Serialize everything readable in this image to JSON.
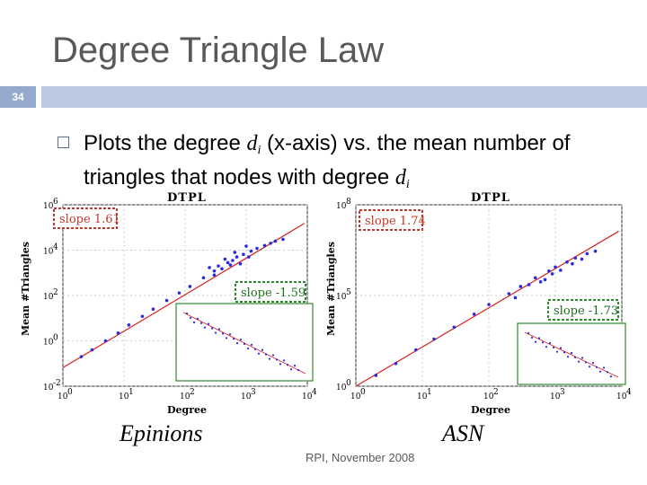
{
  "slide": {
    "title": "Degree Triangle Law",
    "number": "34",
    "bullet_part1": "Plots the degree ",
    "bullet_var": "d",
    "bullet_sub": "i",
    "bullet_part2": " (x-axis) vs. the mean number of triangles that nodes with degree ",
    "bullet_var2": "d",
    "bullet_sub2": "i",
    "footer": "RPI, November 2008",
    "left_caption": "Epinions",
    "right_caption": "ASN"
  },
  "colors": {
    "accent_bar": "#bac9e0",
    "number_box": "#94a9cc",
    "fit_line": "#d92020",
    "points": "#2a2ae0",
    "slope_box": "#c0392b",
    "inset_box": "#2e8b2e"
  },
  "chart_data": [
    {
      "type": "scatter",
      "title": "DTPL",
      "xlabel": "Degree",
      "ylabel": "Mean #Triangles",
      "x_scale": "log",
      "y_scale": "log",
      "xlim": [
        1,
        10000
      ],
      "ylim": [
        0.01,
        1000000
      ],
      "x_ticks": [
        "10",
        "10",
        "10",
        "10",
        "10"
      ],
      "x_tick_exp": [
        "0",
        "1",
        "2",
        "3",
        "4"
      ],
      "y_ticks": [
        "10",
        "10",
        "10",
        "10",
        "10"
      ],
      "y_tick_exp": [
        "-2",
        "0",
        "2",
        "4",
        "6"
      ],
      "fit_slope": 1.61,
      "slope_label": "slope 1.61",
      "inset_slope_label": "slope -1.59",
      "series": [
        {
          "points": [
            [
              2,
              0.2
            ],
            [
              3,
              0.4
            ],
            [
              5,
              1.0
            ],
            [
              8,
              2.2
            ],
            [
              12,
              5
            ],
            [
              20,
              12
            ],
            [
              30,
              25
            ],
            [
              50,
              60
            ],
            [
              80,
              130
            ],
            [
              120,
              250
            ],
            [
              200,
              600
            ],
            [
              300,
              1200
            ],
            [
              500,
              2800
            ],
            [
              700,
              5000
            ],
            [
              900,
              6500
            ],
            [
              1200,
              9000
            ],
            [
              1500,
              12000
            ],
            [
              2000,
              16000
            ],
            [
              2500,
              20000
            ],
            [
              3000,
              25000
            ],
            [
              4000,
              30000
            ],
            [
              300,
              800
            ],
            [
              400,
              1500
            ],
            [
              600,
              3500
            ],
            [
              800,
              2500
            ],
            [
              1000,
              15000
            ],
            [
              250,
              1700
            ],
            [
              450,
              4000
            ],
            [
              350,
              2000
            ],
            [
              550,
              2200
            ],
            [
              650,
              8000
            ],
            [
              1100,
              5000
            ]
          ]
        }
      ]
    },
    {
      "type": "scatter",
      "title": "DTPL",
      "xlabel": "Degree",
      "ylabel": "Mean #Triangles",
      "x_scale": "log",
      "y_scale": "log",
      "xlim": [
        1,
        10000
      ],
      "ylim": [
        1,
        100000000
      ],
      "x_ticks": [
        "10",
        "10",
        "10",
        "10",
        "10"
      ],
      "x_tick_exp": [
        "0",
        "1",
        "2",
        "3",
        "4"
      ],
      "y_ticks": [
        "10",
        "10",
        "10"
      ],
      "y_tick_exp": [
        "0",
        "5",
        "8"
      ],
      "fit_slope": 1.74,
      "slope_label": "slope 1.74",
      "inset_slope_label": "slope -1.73",
      "series": [
        {
          "points": [
            [
              2,
              3
            ],
            [
              4,
              10
            ],
            [
              8,
              40
            ],
            [
              15,
              120
            ],
            [
              30,
              400
            ],
            [
              60,
              1500
            ],
            [
              100,
              4000
            ],
            [
              200,
              12000
            ],
            [
              300,
              25000
            ],
            [
              500,
              60000
            ],
            [
              800,
              120000
            ],
            [
              1000,
              180000
            ],
            [
              1500,
              300000
            ],
            [
              2000,
              450000
            ],
            [
              3000,
              700000
            ],
            [
              4000,
              900000
            ],
            [
              400,
              30000
            ],
            [
              600,
              40000
            ],
            [
              900,
              90000
            ],
            [
              1200,
              130000
            ],
            [
              1800,
              250000
            ],
            [
              2500,
              400000
            ],
            [
              700,
              50000
            ],
            [
              250,
              8000
            ]
          ]
        }
      ]
    }
  ]
}
